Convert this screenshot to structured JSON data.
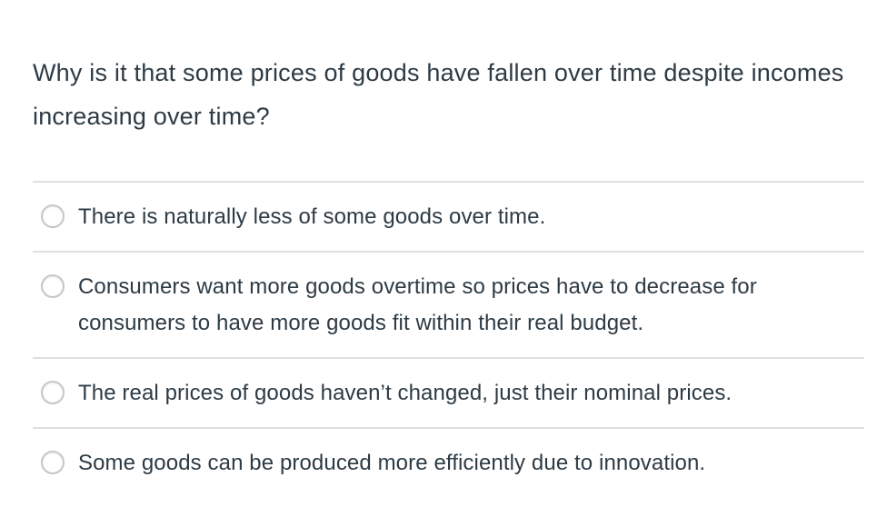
{
  "question": {
    "text": "Why is it that some prices of goods have fallen over time despite incomes increasing over time?"
  },
  "options": [
    {
      "label": "There is naturally less of some goods over time."
    },
    {
      "label": "Consumers want more goods overtime so prices have to decrease for consumers to have more goods fit within their real budget."
    },
    {
      "label": "The real prices of goods haven’t changed, just their nominal prices."
    },
    {
      "label": "Some goods can be produced more efficiently due to innovation."
    }
  ],
  "colors": {
    "text": "#2d3b45",
    "divider": "#e0e0e0",
    "radio_border": "#c6c6c6",
    "background": "#ffffff"
  }
}
